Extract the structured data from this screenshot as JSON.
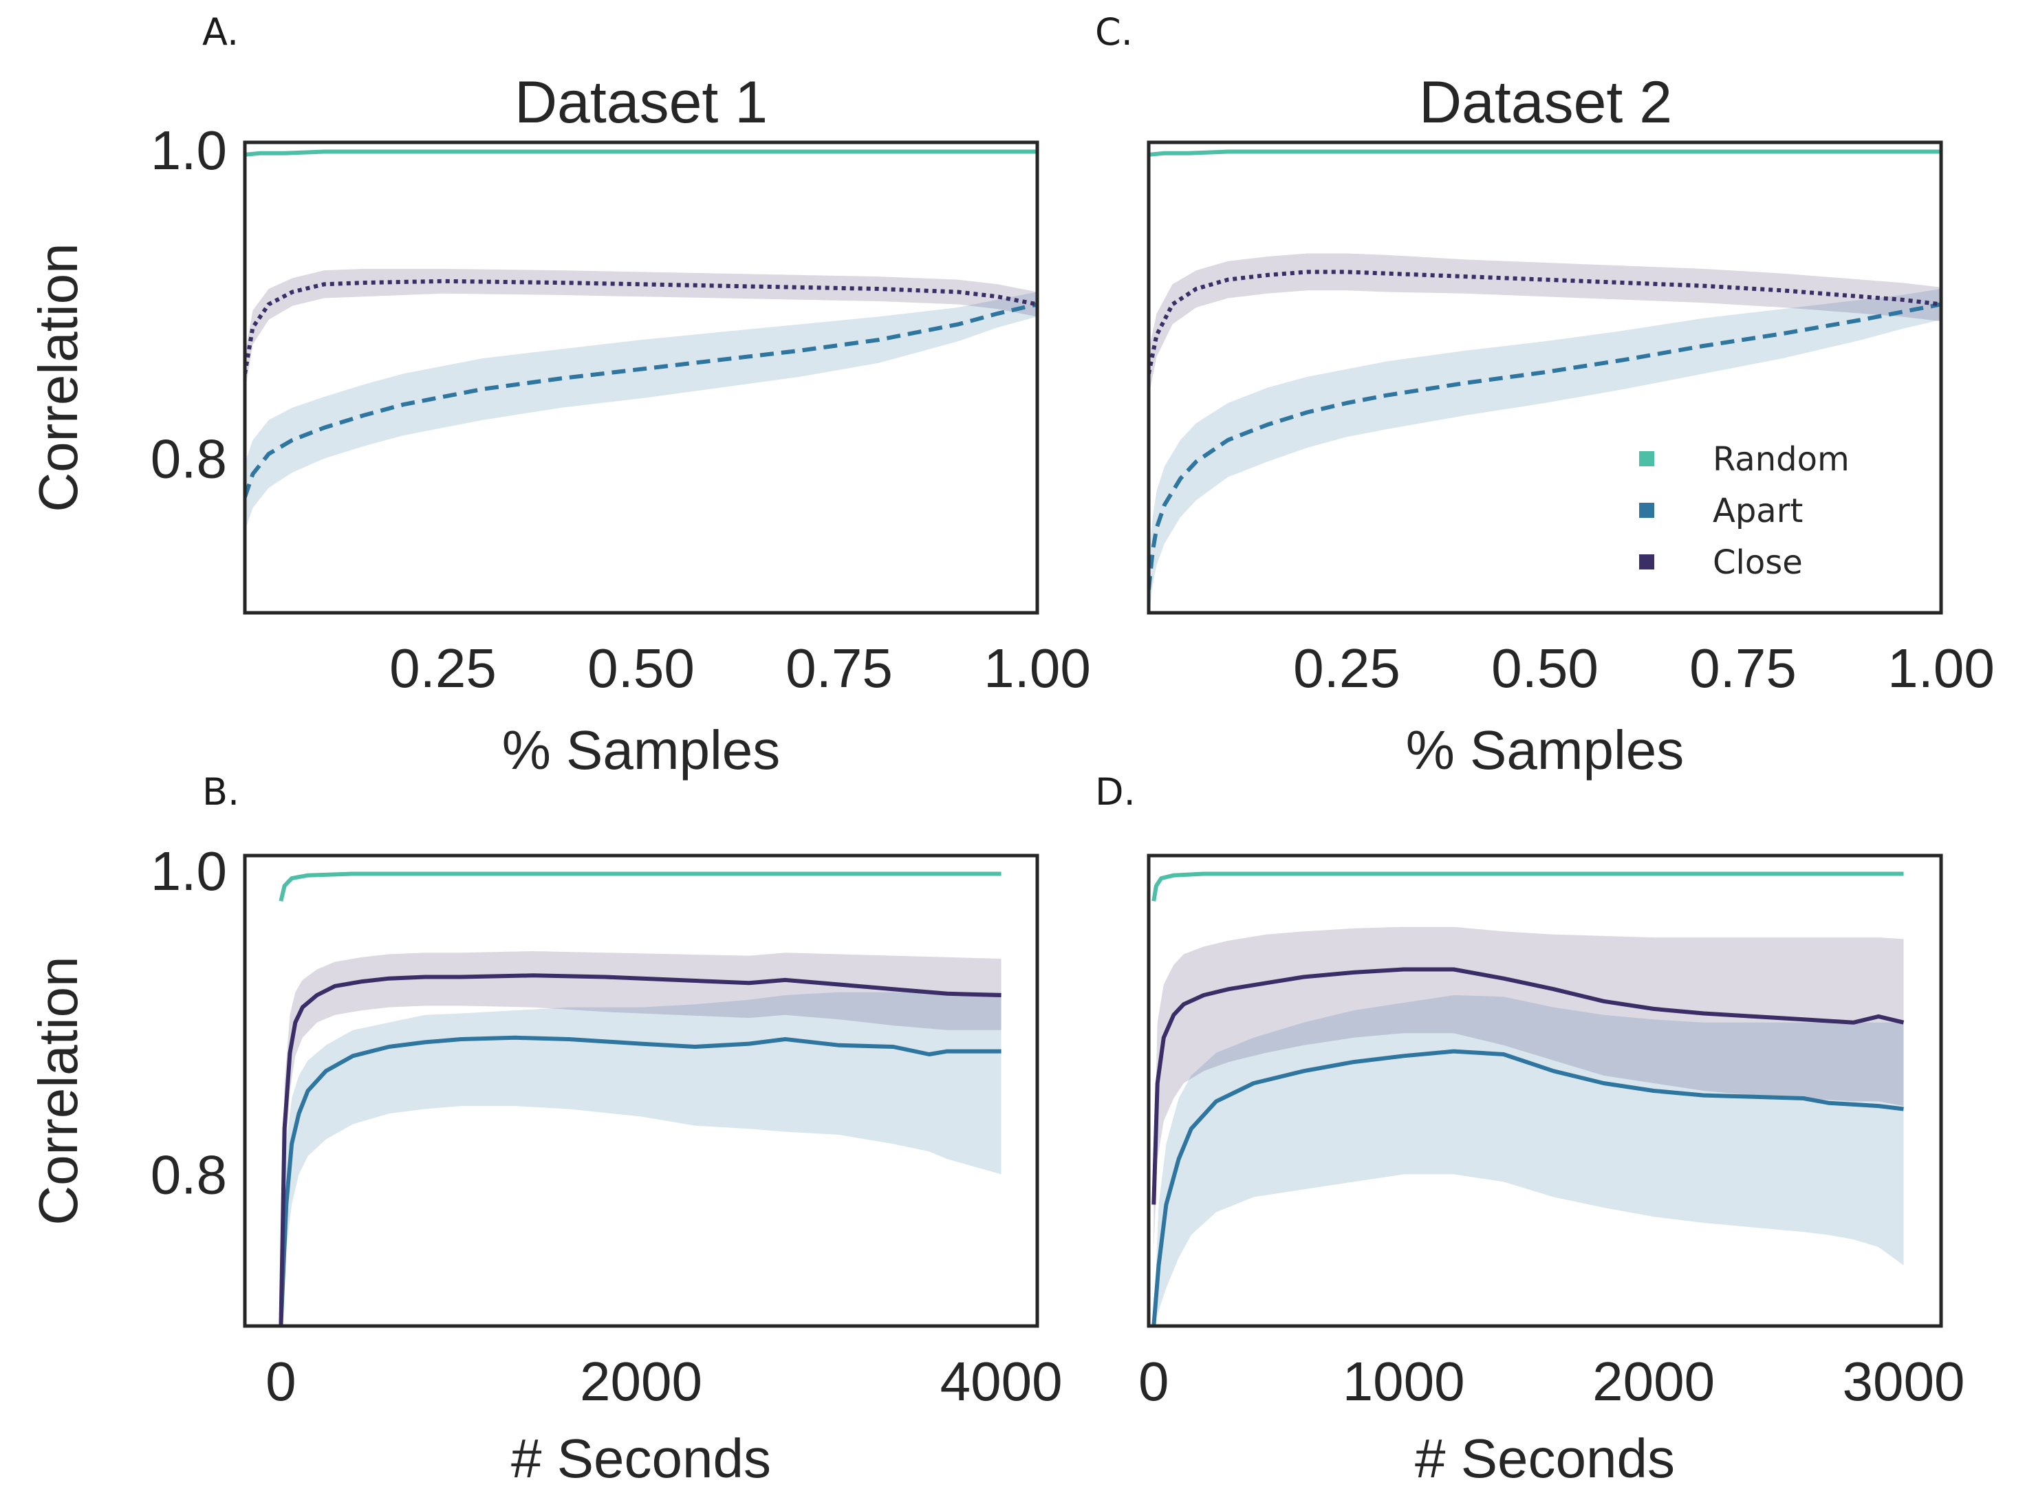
{
  "chart_data": [
    {
      "panel": "A.",
      "type": "line",
      "title": "Dataset 1",
      "xlabel": "% Samples",
      "ylabel": "Correlation",
      "xlim": [
        0.0,
        1.0
      ],
      "ylim": [
        0.7,
        1.005
      ],
      "xticks": [
        "0.25",
        "0.50",
        "0.75",
        "1.00"
      ],
      "yticks": [
        "0.8",
        "1.0"
      ],
      "grid": false,
      "series": [
        {
          "key": "random",
          "style": "solid",
          "color": "#4dbfa6",
          "x": [
            0.0,
            0.02,
            0.05,
            0.1,
            0.25,
            0.5,
            0.75,
            1.0
          ],
          "y": [
            0.997,
            0.998,
            0.998,
            0.999,
            0.999,
            0.999,
            0.999,
            0.999
          ]
        },
        {
          "key": "apart",
          "style": "dashed",
          "color": "#2e75a0",
          "x": [
            0.0,
            0.01,
            0.03,
            0.06,
            0.1,
            0.15,
            0.2,
            0.25,
            0.3,
            0.4,
            0.5,
            0.6,
            0.7,
            0.8,
            0.85,
            0.9,
            0.95,
            1.0
          ],
          "y": [
            0.775,
            0.79,
            0.803,
            0.812,
            0.82,
            0.828,
            0.835,
            0.84,
            0.845,
            0.852,
            0.858,
            0.864,
            0.87,
            0.877,
            0.882,
            0.887,
            0.894,
            0.9
          ],
          "band": [
            0.022,
            0.022,
            0.022,
            0.021,
            0.02,
            0.02,
            0.02,
            0.02,
            0.02,
            0.019,
            0.019,
            0.018,
            0.017,
            0.015,
            0.013,
            0.011,
            0.009,
            0.008
          ]
        },
        {
          "key": "close",
          "style": "dotted",
          "color": "#3b2d66",
          "x": [
            0.0,
            0.01,
            0.03,
            0.06,
            0.1,
            0.15,
            0.25,
            0.4,
            0.5,
            0.6,
            0.7,
            0.8,
            0.85,
            0.9,
            0.95,
            1.0
          ],
          "y": [
            0.855,
            0.885,
            0.9,
            0.908,
            0.913,
            0.914,
            0.915,
            0.914,
            0.913,
            0.912,
            0.911,
            0.91,
            0.909,
            0.908,
            0.905,
            0.9
          ],
          "band": [
            0.012,
            0.011,
            0.01,
            0.009,
            0.009,
            0.009,
            0.008,
            0.008,
            0.008,
            0.008,
            0.008,
            0.008,
            0.008,
            0.008,
            0.008,
            0.008
          ]
        }
      ]
    },
    {
      "panel": "B.",
      "type": "line",
      "title": "",
      "xlabel": "# Seconds",
      "ylabel": "Correlation",
      "xlim": [
        -200,
        4200
      ],
      "ylim": [
        0.7,
        1.01
      ],
      "xticks": [
        "0",
        "2000",
        "4000"
      ],
      "yticks": [
        "0.8",
        "1.0"
      ],
      "grid": false,
      "series": [
        {
          "key": "random",
          "style": "solid",
          "color": "#4dbfa6",
          "x": [
            0,
            20,
            60,
            150,
            400,
            1000,
            2000,
            3000,
            4000
          ],
          "y": [
            0.98,
            0.99,
            0.995,
            0.997,
            0.998,
            0.998,
            0.998,
            0.998,
            0.998
          ]
        },
        {
          "key": "apart",
          "style": "solid",
          "color": "#2e75a0",
          "x": [
            0,
            30,
            60,
            100,
            150,
            250,
            400,
            600,
            800,
            1000,
            1300,
            1600,
            2000,
            2300,
            2600,
            2800,
            3100,
            3400,
            3600,
            3700,
            4000
          ],
          "y": [
            0.7,
            0.78,
            0.82,
            0.84,
            0.855,
            0.868,
            0.878,
            0.884,
            0.887,
            0.889,
            0.89,
            0.889,
            0.886,
            0.884,
            0.886,
            0.889,
            0.885,
            0.884,
            0.879,
            0.881,
            0.881
          ],
          "lower": [
            0.7,
            0.75,
            0.78,
            0.8,
            0.812,
            0.823,
            0.833,
            0.84,
            0.843,
            0.845,
            0.845,
            0.843,
            0.838,
            0.832,
            0.83,
            0.828,
            0.826,
            0.82,
            0.815,
            0.81,
            0.8
          ],
          "upper": [
            0.7,
            0.82,
            0.85,
            0.865,
            0.875,
            0.885,
            0.895,
            0.9,
            0.905,
            0.906,
            0.908,
            0.91,
            0.91,
            0.912,
            0.915,
            0.918,
            0.92,
            0.92,
            0.92,
            0.92,
            0.92
          ]
        },
        {
          "key": "close",
          "style": "solid",
          "color": "#3b2d66",
          "x": [
            0,
            20,
            50,
            80,
            120,
            200,
            300,
            450,
            600,
            800,
            1000,
            1400,
            1800,
            2200,
            2600,
            2800,
            3100,
            3400,
            3700,
            4000
          ],
          "y": [
            0.7,
            0.83,
            0.88,
            0.9,
            0.91,
            0.918,
            0.924,
            0.927,
            0.929,
            0.93,
            0.93,
            0.931,
            0.93,
            0.928,
            0.926,
            0.928,
            0.925,
            0.922,
            0.919,
            0.918
          ],
          "lower": [
            0.7,
            0.8,
            0.855,
            0.878,
            0.89,
            0.9,
            0.905,
            0.908,
            0.91,
            0.911,
            0.911,
            0.91,
            0.907,
            0.905,
            0.903,
            0.905,
            0.902,
            0.898,
            0.895,
            0.895
          ],
          "upper": [
            0.7,
            0.86,
            0.905,
            0.92,
            0.928,
            0.935,
            0.94,
            0.943,
            0.945,
            0.946,
            0.946,
            0.947,
            0.946,
            0.945,
            0.944,
            0.946,
            0.945,
            0.944,
            0.943,
            0.942
          ]
        }
      ]
    },
    {
      "panel": "C.",
      "type": "line",
      "title": "Dataset 2",
      "xlabel": "% Samples",
      "ylabel": "",
      "xlim": [
        0.0,
        1.0
      ],
      "ylim": [
        0.7,
        1.005
      ],
      "xticks": [
        "0.25",
        "0.50",
        "0.75",
        "1.00"
      ],
      "yticks": [],
      "grid": false,
      "legend": {
        "placement": "right",
        "entries": [
          "Random",
          "Apart",
          "Close"
        ]
      },
      "series": [
        {
          "key": "random",
          "style": "solid",
          "color": "#4dbfa6",
          "x": [
            0.0,
            0.02,
            0.05,
            0.1,
            0.25,
            0.5,
            0.75,
            1.0
          ],
          "y": [
            0.997,
            0.998,
            0.998,
            0.999,
            0.999,
            0.999,
            0.999,
            0.999
          ]
        },
        {
          "key": "apart",
          "style": "dashed",
          "color": "#2e75a0",
          "x": [
            0.0,
            0.005,
            0.01,
            0.02,
            0.04,
            0.06,
            0.1,
            0.15,
            0.2,
            0.25,
            0.3,
            0.4,
            0.5,
            0.6,
            0.7,
            0.8,
            0.9,
            0.95,
            1.0
          ],
          "y": [
            0.715,
            0.74,
            0.755,
            0.77,
            0.787,
            0.798,
            0.812,
            0.822,
            0.83,
            0.836,
            0.841,
            0.849,
            0.856,
            0.864,
            0.873,
            0.881,
            0.89,
            0.895,
            0.9
          ],
          "band": [
            0.02,
            0.022,
            0.024,
            0.025,
            0.025,
            0.025,
            0.024,
            0.024,
            0.023,
            0.022,
            0.022,
            0.021,
            0.02,
            0.019,
            0.018,
            0.016,
            0.013,
            0.011,
            0.01
          ]
        },
        {
          "key": "close",
          "style": "dotted",
          "color": "#3b2d66",
          "x": [
            0.0,
            0.01,
            0.03,
            0.06,
            0.1,
            0.15,
            0.2,
            0.25,
            0.3,
            0.4,
            0.5,
            0.6,
            0.7,
            0.8,
            0.85,
            0.9,
            0.95,
            1.0
          ],
          "y": [
            0.855,
            0.88,
            0.9,
            0.91,
            0.916,
            0.919,
            0.921,
            0.921,
            0.92,
            0.918,
            0.916,
            0.914,
            0.912,
            0.909,
            0.907,
            0.905,
            0.903,
            0.9
          ],
          "band": [
            0.015,
            0.014,
            0.013,
            0.012,
            0.012,
            0.012,
            0.012,
            0.012,
            0.012,
            0.011,
            0.011,
            0.011,
            0.011,
            0.011,
            0.011,
            0.011,
            0.011,
            0.011
          ]
        }
      ]
    },
    {
      "panel": "D.",
      "type": "line",
      "title": "",
      "xlabel": "# Seconds",
      "ylabel": "",
      "xlim": [
        -20,
        3150
      ],
      "ylim": [
        0.7,
        1.01
      ],
      "xticks": [
        "0",
        "1000",
        "2000",
        "3000"
      ],
      "yticks": [],
      "grid": false,
      "series": [
        {
          "key": "random",
          "style": "solid",
          "color": "#4dbfa6",
          "x": [
            0,
            10,
            30,
            80,
            200,
            600,
            1500,
            2500,
            3000
          ],
          "y": [
            0.98,
            0.99,
            0.995,
            0.997,
            0.998,
            0.998,
            0.998,
            0.998,
            0.998
          ]
        },
        {
          "key": "apart",
          "style": "solid",
          "color": "#2e75a0",
          "x": [
            0,
            20,
            50,
            100,
            150,
            250,
            400,
            600,
            800,
            1000,
            1200,
            1400,
            1600,
            1800,
            2000,
            2200,
            2400,
            2600,
            2700,
            2800,
            2900,
            3000
          ],
          "y": [
            0.7,
            0.74,
            0.78,
            0.81,
            0.83,
            0.848,
            0.86,
            0.868,
            0.874,
            0.878,
            0.881,
            0.879,
            0.868,
            0.86,
            0.855,
            0.852,
            0.851,
            0.85,
            0.847,
            0.846,
            0.845,
            0.843
          ],
          "lower": [
            0.7,
            0.71,
            0.725,
            0.745,
            0.76,
            0.775,
            0.785,
            0.79,
            0.795,
            0.8,
            0.8,
            0.795,
            0.785,
            0.778,
            0.772,
            0.768,
            0.765,
            0.762,
            0.76,
            0.757,
            0.752,
            0.74
          ],
          "upper": [
            0.7,
            0.78,
            0.82,
            0.85,
            0.865,
            0.88,
            0.89,
            0.9,
            0.908,
            0.913,
            0.918,
            0.917,
            0.91,
            0.905,
            0.902,
            0.9,
            0.9,
            0.9,
            0.9,
            0.9,
            0.9,
            0.9
          ]
        },
        {
          "key": "close",
          "style": "solid",
          "color": "#3b2d66",
          "x": [
            0,
            15,
            40,
            80,
            120,
            200,
            300,
            450,
            600,
            800,
            1000,
            1200,
            1400,
            1600,
            1800,
            2000,
            2200,
            2400,
            2600,
            2800,
            2900,
            3000
          ],
          "y": [
            0.78,
            0.86,
            0.89,
            0.905,
            0.912,
            0.918,
            0.922,
            0.926,
            0.93,
            0.933,
            0.935,
            0.935,
            0.929,
            0.922,
            0.914,
            0.909,
            0.906,
            0.904,
            0.902,
            0.9,
            0.904,
            0.9
          ],
          "lower": [
            0.75,
            0.81,
            0.835,
            0.85,
            0.86,
            0.868,
            0.874,
            0.88,
            0.885,
            0.89,
            0.893,
            0.893,
            0.885,
            0.875,
            0.865,
            0.86,
            0.855,
            0.852,
            0.85,
            0.848,
            0.848,
            0.845
          ],
          "upper": [
            0.8,
            0.9,
            0.925,
            0.938,
            0.945,
            0.95,
            0.954,
            0.958,
            0.96,
            0.962,
            0.963,
            0.963,
            0.96,
            0.958,
            0.957,
            0.956,
            0.956,
            0.956,
            0.956,
            0.956,
            0.956,
            0.955
          ]
        }
      ]
    }
  ]
}
